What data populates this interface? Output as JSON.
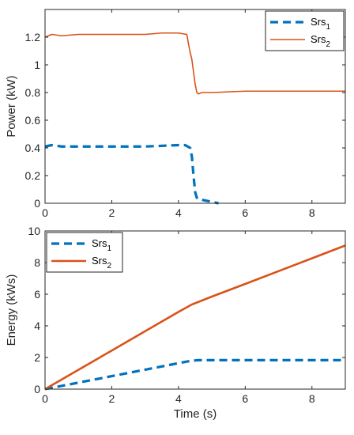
{
  "chart_data": [
    {
      "type": "line",
      "ylabel": "Power (kW)",
      "xlim": [
        0,
        9
      ],
      "ylim": [
        0,
        1.4
      ],
      "xticks": [
        "0",
        "2",
        "4",
        "6",
        "8"
      ],
      "yticks": [
        "0",
        "0.2",
        "0.4",
        "0.6",
        "0.8",
        "1",
        "1.2"
      ],
      "grid": false,
      "legend_position": "top-right",
      "series": [
        {
          "name_base": "Srs",
          "name_sub": "1",
          "color": "#0072BD",
          "style": "dashed",
          "x": [
            0,
            0.2,
            0.5,
            1,
            2,
            3,
            4,
            4.2,
            4.35,
            4.4,
            4.45,
            4.5,
            4.55,
            4.6,
            4.8,
            5.0,
            5.2
          ],
          "y": [
            0.41,
            0.42,
            0.41,
            0.41,
            0.41,
            0.41,
            0.42,
            0.42,
            0.4,
            0.34,
            0.2,
            0.08,
            0.04,
            0.03,
            0.02,
            0.01,
            0.0
          ]
        },
        {
          "name_base": "Srs",
          "name_sub": "2",
          "color": "#D95319",
          "style": "solid",
          "x": [
            0,
            0.2,
            0.5,
            1,
            2,
            3,
            3.5,
            4,
            4.25,
            4.3,
            4.35,
            4.4,
            4.45,
            4.5,
            4.55,
            4.6,
            4.7,
            5,
            6,
            7,
            8,
            9
          ],
          "y": [
            1.2,
            1.22,
            1.21,
            1.22,
            1.22,
            1.22,
            1.23,
            1.23,
            1.22,
            1.15,
            1.09,
            1.04,
            0.95,
            0.86,
            0.8,
            0.79,
            0.8,
            0.8,
            0.81,
            0.81,
            0.81,
            0.81
          ]
        }
      ]
    },
    {
      "type": "line",
      "xlabel": "Time (s)",
      "ylabel": "Energy (kWs)",
      "xlim": [
        0,
        9
      ],
      "ylim": [
        0,
        10
      ],
      "xticks": [
        "0",
        "2",
        "4",
        "6",
        "8"
      ],
      "yticks": [
        "0",
        "2",
        "4",
        "6",
        "8",
        "10"
      ],
      "grid": false,
      "legend_position": "top-left",
      "series": [
        {
          "name_base": "Srs",
          "name_sub": "1",
          "color": "#0072BD",
          "style": "dashed",
          "x": [
            0,
            1,
            2,
            3,
            4,
            4.4,
            4.6,
            5,
            6,
            7,
            8,
            9
          ],
          "y": [
            0,
            0.41,
            0.82,
            1.23,
            1.64,
            1.8,
            1.83,
            1.83,
            1.83,
            1.83,
            1.83,
            1.83
          ]
        },
        {
          "name_base": "Srs",
          "name_sub": "2",
          "color": "#D95319",
          "style": "solid",
          "x": [
            0,
            1,
            2,
            3,
            4,
            4.4,
            5,
            6,
            7,
            8,
            9
          ],
          "y": [
            0,
            1.22,
            2.44,
            3.66,
            4.88,
            5.35,
            5.85,
            6.65,
            7.46,
            8.27,
            9.08
          ]
        }
      ]
    }
  ]
}
